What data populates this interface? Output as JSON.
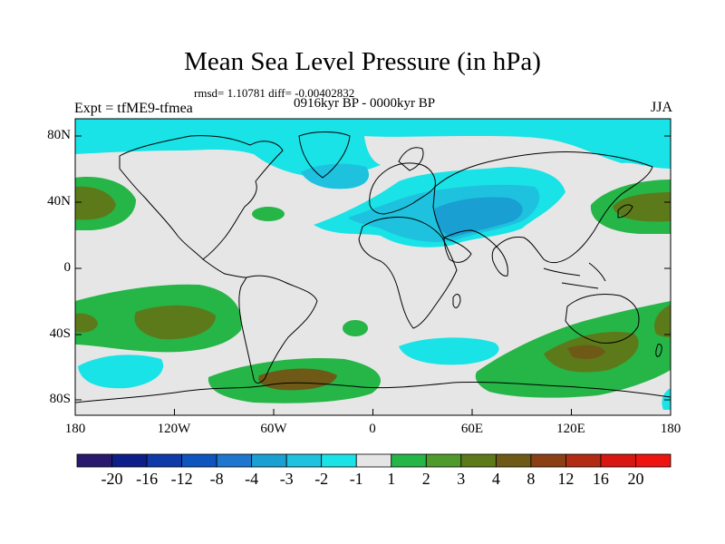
{
  "title": "Mean Sea Level Pressure (in hPa)",
  "stats_text": "rmsd= 1.10781 diff= -0.00402832",
  "experiment": "Expt = tfME9-tfmea",
  "period": "0916kyr BP - 0000kyr BP",
  "season": "JJA",
  "lat_labels": [
    "80N",
    "40N",
    "0",
    "40S",
    "80S"
  ],
  "lon_labels": [
    "180",
    "120W",
    "60W",
    "0",
    "60E",
    "120E",
    "180"
  ],
  "colorbar": {
    "labels": [
      "-20",
      "-16",
      "-12",
      "-8",
      "-4",
      "-3",
      "-2",
      "-1",
      "1",
      "2",
      "3",
      "4",
      "8",
      "12",
      "16",
      "20"
    ],
    "colors": [
      "#2a1a6e",
      "#0d1e8a",
      "#0f3aa8",
      "#0e55bd",
      "#1f76cf",
      "#199fd2",
      "#1ec2de",
      "#19e3e6",
      "#e5e5e5",
      "#26b547",
      "#4f9a2c",
      "#5d7a1a",
      "#6e5a16",
      "#8a3f14",
      "#b12c12",
      "#d81612",
      "#ee1510"
    ]
  },
  "colors": {
    "background": "#e6e6e6",
    "land_outline": "#000000",
    "light_cyan": "#19e3e6",
    "mid_cyan": "#1ec2de",
    "blue": "#199fd2",
    "green": "#26b547",
    "olive": "#5d7a1a",
    "brown": "#6e5a16"
  }
}
